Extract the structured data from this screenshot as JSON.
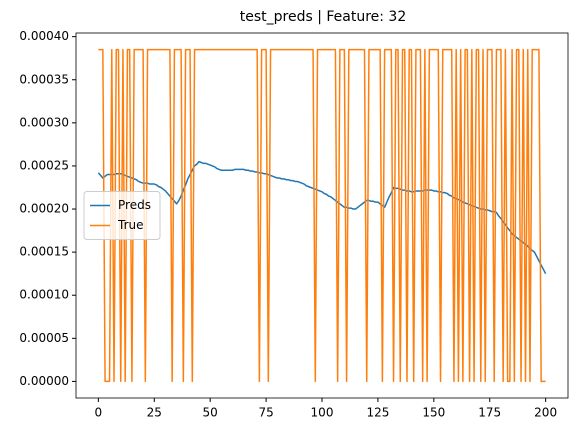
{
  "chart_data": {
    "type": "line",
    "title": "test_preds | Feature: 32",
    "x": [
      0,
      1,
      2,
      3,
      4,
      5,
      6,
      7,
      8,
      9,
      10,
      11,
      12,
      13,
      14,
      15,
      16,
      17,
      18,
      19,
      20,
      21,
      22,
      23,
      24,
      25,
      26,
      27,
      28,
      29,
      30,
      31,
      32,
      33,
      34,
      35,
      36,
      37,
      38,
      39,
      40,
      41,
      42,
      43,
      44,
      45,
      46,
      47,
      48,
      49,
      50,
      51,
      52,
      53,
      54,
      55,
      56,
      57,
      58,
      59,
      60,
      61,
      62,
      63,
      64,
      65,
      66,
      67,
      68,
      69,
      70,
      71,
      72,
      73,
      74,
      75,
      76,
      77,
      78,
      79,
      80,
      81,
      82,
      83,
      84,
      85,
      86,
      87,
      88,
      89,
      90,
      91,
      92,
      93,
      94,
      95,
      96,
      97,
      98,
      99,
      100,
      101,
      102,
      103,
      104,
      105,
      106,
      107,
      108,
      109,
      110,
      111,
      112,
      113,
      114,
      115,
      116,
      117,
      118,
      119,
      120,
      121,
      122,
      123,
      124,
      125,
      126,
      127,
      128,
      129,
      130,
      131,
      132,
      133,
      134,
      135,
      136,
      137,
      138,
      139,
      140,
      141,
      142,
      143,
      144,
      145,
      146,
      147,
      148,
      149,
      150,
      151,
      152,
      153,
      154,
      155,
      156,
      157,
      158,
      159,
      160,
      161,
      162,
      163,
      164,
      165,
      166,
      167,
      168,
      169,
      170,
      171,
      172,
      173,
      174,
      175,
      176,
      177,
      178,
      179,
      180,
      181,
      182,
      183,
      184,
      185,
      186,
      187,
      188,
      189,
      190,
      191,
      192,
      193,
      194,
      195,
      196,
      197,
      198,
      199,
      200
    ],
    "series": [
      {
        "name": "Preds",
        "color": "#1f77b4",
        "values": [
          0.000242,
          0.000239,
          0.000236,
          0.000238,
          0.00024,
          0.00024,
          0.00024,
          0.00024,
          0.000241,
          0.000241,
          0.000241,
          0.00024,
          0.000239,
          0.000238,
          0.000237,
          0.000236,
          0.000235,
          0.000234,
          0.000232,
          0.000231,
          0.00023,
          0.00023,
          0.00023,
          0.000229,
          0.000229,
          0.000229,
          0.000228,
          0.000226,
          0.000225,
          0.000223,
          0.000221,
          0.000218,
          0.000215,
          0.000212,
          0.000209,
          0.000206,
          0.00021,
          0.000215,
          0.000222,
          0.000228,
          0.000235,
          0.00024,
          0.000245,
          0.00025,
          0.000252,
          0.000255,
          0.000254,
          0.000253,
          0.000253,
          0.000252,
          0.000251,
          0.00025,
          0.000249,
          0.000247,
          0.000246,
          0.000245,
          0.000245,
          0.000245,
          0.000245,
          0.000245,
          0.000245,
          0.000246,
          0.000246,
          0.000246,
          0.000246,
          0.000246,
          0.000245,
          0.000245,
          0.000244,
          0.000244,
          0.000243,
          0.000243,
          0.000242,
          0.000242,
          0.000241,
          0.000241,
          0.00024,
          0.000239,
          0.000238,
          0.000237,
          0.000236,
          0.000236,
          0.000235,
          0.000235,
          0.000234,
          0.000234,
          0.000233,
          0.000233,
          0.000232,
          0.000232,
          0.000231,
          0.00023,
          0.000229,
          0.000227,
          0.000226,
          0.000225,
          0.000224,
          0.000223,
          0.000222,
          0.000221,
          0.00022,
          0.000218,
          0.000217,
          0.000215,
          0.000214,
          0.000212,
          0.00021,
          0.000208,
          0.000206,
          0.000204,
          0.000202,
          0.000202,
          0.000201,
          0.000201,
          0.0002,
          0.0002,
          0.000202,
          0.000204,
          0.000206,
          0.000208,
          0.00021,
          0.00021,
          0.000209,
          0.000209,
          0.000208,
          0.000208,
          0.000206,
          0.000204,
          0.000202,
          0.000208,
          0.000214,
          0.000219,
          0.000225,
          0.000224,
          0.000224,
          0.000223,
          0.000222,
          0.000222,
          0.000221,
          0.000221,
          0.00022,
          0.00022,
          0.000221,
          0.000221,
          0.000221,
          0.000221,
          0.000222,
          0.000222,
          0.000222,
          0.000222,
          0.000221,
          0.000221,
          0.00022,
          0.00022,
          0.000219,
          0.000219,
          0.000218,
          0.000216,
          0.000215,
          0.000213,
          0.000212,
          0.000211,
          0.00021,
          0.000208,
          0.000207,
          0.000206,
          0.000205,
          0.000204,
          0.000203,
          0.000202,
          0.000201,
          0.0002,
          0.0002,
          0.000199,
          0.000199,
          0.000198,
          0.000197,
          0.000197,
          0.000196,
          0.000192,
          0.000189,
          0.000185,
          0.000182,
          0.000178,
          0.000175,
          0.000171,
          0.000169,
          0.000167,
          0.000165,
          0.000163,
          0.000161,
          0.000159,
          0.000157,
          0.000154,
          0.000152,
          0.00015,
          0.000145,
          0.00014,
          0.000135,
          0.00013,
          0.000125
        ]
      },
      {
        "name": "True",
        "color": "#ff7f0e",
        "values": [
          0.000385,
          0.000385,
          0.000385,
          0,
          0,
          0,
          0.000385,
          0,
          0.000385,
          0.000385,
          0,
          0.000385,
          0,
          0.000385,
          0.000385,
          0,
          0.000385,
          0.000385,
          0.000385,
          0.000385,
          0.000385,
          0,
          0.000385,
          0.000385,
          0.000385,
          0.000385,
          0.000385,
          0.000385,
          0.000385,
          0.000385,
          0.000385,
          0.000385,
          0.000385,
          0,
          0.000385,
          0.000385,
          0.000385,
          0.000385,
          0,
          0.000385,
          0.000385,
          0.000385,
          0,
          0.000385,
          0.000385,
          0.000385,
          0.000385,
          0.000385,
          0.000385,
          0.000385,
          0.000385,
          0.000385,
          0.000385,
          0.000385,
          0.000385,
          0.000385,
          0.000385,
          0.000385,
          0.000385,
          0.000385,
          0.000385,
          0.000385,
          0.000385,
          0.000385,
          0.000385,
          0.000385,
          0.000385,
          0.000385,
          0.000385,
          0.000385,
          0.000385,
          0.000385,
          0,
          0.000385,
          0.000385,
          0.000385,
          0,
          0.000385,
          0.000385,
          0.000385,
          0.000385,
          0.000385,
          0.000385,
          0.000385,
          0.000385,
          0.000385,
          0.000385,
          0.000385,
          0.000385,
          0.000385,
          0.000385,
          0.000385,
          0.000385,
          0.000385,
          0.000385,
          0.000385,
          0.000385,
          0,
          0.000385,
          0.000385,
          0.000385,
          0.000385,
          0.000385,
          0.000385,
          0.000385,
          0.000385,
          0.000385,
          0,
          0.000385,
          0.000385,
          0.000385,
          0,
          0.000385,
          0.000385,
          0.000385,
          0.000385,
          0.000385,
          0.000385,
          0.000385,
          0.000385,
          0,
          0.000385,
          0.000385,
          0.000385,
          0.000385,
          0.000385,
          0.000385,
          0,
          0.000385,
          0.000385,
          0.000385,
          0.000385,
          0,
          0.000385,
          0.000385,
          0,
          0.000385,
          0.000385,
          0,
          0.000385,
          0.000385,
          0,
          0.000385,
          0.000385,
          0.000385,
          0,
          0.000385,
          0,
          0.000385,
          0.000385,
          0.000385,
          0.000385,
          0.000385,
          0,
          0.000385,
          0.000385,
          0.000385,
          0.000385,
          0.000385,
          0,
          0.000385,
          0,
          0.000385,
          0,
          0.000385,
          0.000385,
          0,
          0.000385,
          0,
          0.000385,
          0.000385,
          0,
          0.000385,
          0,
          0.000385,
          0.000385,
          0.000385,
          0,
          0.000385,
          0.000385,
          0.000385,
          0,
          0.000385,
          0,
          0,
          0.000385,
          0,
          0.000385,
          0.000385,
          0,
          0.000385,
          0,
          0.000385,
          0,
          0.000385,
          0.000385,
          0.000385,
          0.000385,
          0,
          0,
          0
        ]
      }
    ],
    "xlim": [
      -10,
      210
    ],
    "xticks": [
      0,
      25,
      50,
      75,
      100,
      125,
      150,
      175,
      200
    ],
    "ylim": [
      -1.925e-05,
      0.00040425
    ],
    "yticks": [
      {
        "value": 0,
        "label": "0.00000"
      },
      {
        "value": 5e-05,
        "label": "0.00005"
      },
      {
        "value": 0.0001,
        "label": "0.00010"
      },
      {
        "value": 0.00015,
        "label": "0.00015"
      },
      {
        "value": 0.0002,
        "label": "0.00020"
      },
      {
        "value": 0.00025,
        "label": "0.00025"
      },
      {
        "value": 0.0003,
        "label": "0.00030"
      },
      {
        "value": 0.00035,
        "label": "0.00035"
      },
      {
        "value": 0.0004,
        "label": "0.00040"
      }
    ],
    "legend": "center left",
    "grid": false
  }
}
